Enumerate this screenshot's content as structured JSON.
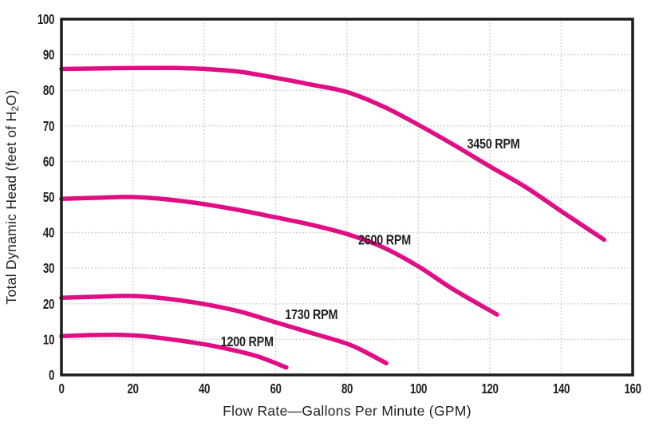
{
  "chart_data": {
    "type": "line",
    "title": "",
    "xlabel": "Flow Rate—Gallons Per Minute (GPM)",
    "ylabel": "Total Dynamic Head (feet of H₂O)",
    "ylabel_parts": {
      "pre": "Total Dynamic Head (feet of H",
      "sub": "2",
      "post": "O)"
    },
    "xlim": [
      0,
      160
    ],
    "ylim": [
      0,
      100
    ],
    "xticks": [
      0,
      20,
      40,
      60,
      80,
      100,
      120,
      140,
      160
    ],
    "yticks": [
      0,
      10,
      20,
      30,
      40,
      50,
      60,
      70,
      80,
      90,
      100
    ],
    "grid": "dotted",
    "legend_position": "inline-labels",
    "series": [
      {
        "name": "3450 RPM",
        "label": "3450 RPM",
        "label_pos": {
          "x": 121,
          "y": 65
        },
        "points": [
          [
            0,
            86
          ],
          [
            15,
            86.2
          ],
          [
            30,
            86.3
          ],
          [
            40,
            86
          ],
          [
            50,
            85.2
          ],
          [
            60,
            83.5
          ],
          [
            70,
            81.6
          ],
          [
            80,
            79.5
          ],
          [
            90,
            75.5
          ],
          [
            100,
            70.3
          ],
          [
            110,
            64.6
          ],
          [
            120,
            58.6
          ],
          [
            130,
            52.8
          ],
          [
            140,
            46
          ],
          [
            152,
            38
          ]
        ]
      },
      {
        "name": "2600 RPM",
        "label": "2600 RPM",
        "label_pos": {
          "x": 90.5,
          "y": 38
        },
        "points": [
          [
            0,
            49.5
          ],
          [
            10,
            49.8
          ],
          [
            20,
            50
          ],
          [
            30,
            49.3
          ],
          [
            40,
            48
          ],
          [
            50,
            46.3
          ],
          [
            60,
            44.3
          ],
          [
            70,
            42.2
          ],
          [
            80,
            39.6
          ],
          [
            90,
            35.9
          ],
          [
            100,
            30.5
          ],
          [
            110,
            23.9
          ],
          [
            122,
            17
          ]
        ]
      },
      {
        "name": "1730 RPM",
        "label": "1730 RPM",
        "label_pos": {
          "x": 70,
          "y": 17
        },
        "points": [
          [
            0,
            21.7
          ],
          [
            10,
            22
          ],
          [
            20,
            22.2
          ],
          [
            30,
            21.4
          ],
          [
            40,
            19.9
          ],
          [
            50,
            17.8
          ],
          [
            60,
            14.8
          ],
          [
            70,
            11.8
          ],
          [
            80,
            8.8
          ],
          [
            85,
            6.5
          ],
          [
            91,
            3.3
          ]
        ]
      },
      {
        "name": "1200 RPM",
        "label": "1200 RPM",
        "label_pos": {
          "x": 52,
          "y": 9.4
        },
        "points": [
          [
            0,
            10.9
          ],
          [
            8,
            11.2
          ],
          [
            15,
            11.3
          ],
          [
            22,
            11
          ],
          [
            30,
            10.1
          ],
          [
            40,
            8.6
          ],
          [
            48,
            7
          ],
          [
            55,
            5.2
          ],
          [
            63,
            2.1
          ]
        ]
      }
    ],
    "colors": {
      "curve": "#E10D84",
      "grid": "#C7C7C7",
      "axis": "#1B1B1B",
      "text": "#231F20",
      "background": "#FFFFFF"
    }
  }
}
